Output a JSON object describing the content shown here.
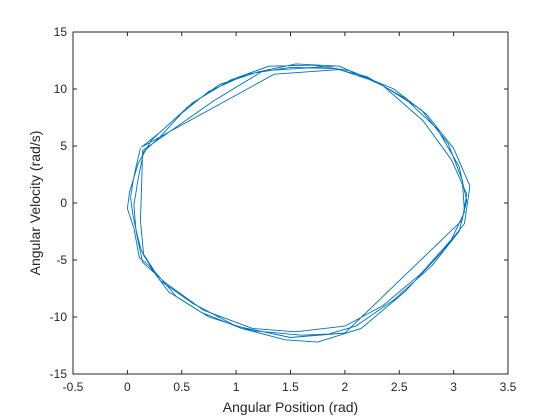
{
  "chart_data": {
    "type": "line",
    "title": "",
    "xlabel": "Angular Position (rad)",
    "ylabel": "Angular Velocity (rad/s)",
    "xlim": [
      -0.5,
      3.5
    ],
    "ylim": [
      -15,
      15
    ],
    "xticks": [
      -0.5,
      0,
      0.5,
      1,
      1.5,
      2,
      2.5,
      3,
      3.5
    ],
    "yticks": [
      -15,
      -10,
      -5,
      0,
      5,
      10,
      15
    ],
    "xtick_labels": [
      "-0.5",
      "0",
      "0.5",
      "1",
      "1.5",
      "2",
      "2.5",
      "3",
      "3.5"
    ],
    "ytick_labels": [
      "-15",
      "-10",
      "-5",
      "0",
      "5",
      "10",
      "15"
    ],
    "grid": false,
    "legend": "none",
    "line_color": "#0072BD",
    "series": [
      {
        "values": [
          [
            0.12,
            4.8
          ],
          [
            0.08,
            3.2
          ],
          [
            0.05,
            1.8
          ],
          [
            0.03,
            0.5
          ],
          [
            0.05,
            -1.0
          ],
          [
            0.09,
            -2.8
          ],
          [
            0.13,
            -4.2
          ],
          [
            0.25,
            -6.0
          ],
          [
            0.45,
            -8.2
          ],
          [
            0.75,
            -10.0
          ],
          [
            1.15,
            -11.2
          ],
          [
            1.6,
            -11.6
          ],
          [
            1.85,
            -11.5
          ],
          [
            2.1,
            -10.8
          ],
          [
            2.45,
            -8.5
          ],
          [
            2.8,
            -5.5
          ],
          [
            3.05,
            -2.5
          ],
          [
            3.12,
            0.2
          ],
          [
            3.05,
            3.2
          ],
          [
            2.85,
            6.5
          ],
          [
            2.55,
            9.2
          ],
          [
            2.2,
            11.1
          ],
          [
            1.9,
            11.8
          ],
          [
            1.5,
            11.9
          ],
          [
            1.1,
            11.3
          ],
          [
            0.75,
            9.8
          ],
          [
            0.45,
            7.5
          ],
          [
            0.22,
            5.5
          ],
          [
            0.1,
            3.5
          ],
          [
            0.02,
            1.0
          ],
          [
            0.0,
            -0.5
          ],
          [
            0.06,
            -2.2
          ],
          [
            0.11,
            -4.8
          ],
          [
            0.2,
            -5.5
          ],
          [
            0.38,
            -7.8
          ],
          [
            0.68,
            -9.6
          ],
          [
            1.05,
            -11.0
          ],
          [
            1.45,
            -12.0
          ],
          [
            1.75,
            -12.2
          ],
          [
            2.15,
            -11.0
          ],
          [
            2.55,
            -7.8
          ],
          [
            2.9,
            -4.2
          ],
          [
            3.1,
            -1.8
          ],
          [
            3.15,
            1.5
          ],
          [
            3.0,
            4.8
          ],
          [
            2.75,
            7.8
          ],
          [
            2.45,
            10.0
          ],
          [
            2.05,
            11.6
          ],
          [
            1.7,
            12.1
          ],
          [
            1.3,
            12.0
          ],
          [
            0.95,
            10.8
          ],
          [
            0.6,
            8.8
          ],
          [
            0.3,
            6.2
          ],
          [
            0.13,
            4.9
          ],
          [
            1.35,
            11.3
          ],
          [
            1.95,
            11.7
          ],
          [
            2.3,
            10.6
          ],
          [
            2.7,
            8.2
          ],
          [
            2.95,
            5.2
          ],
          [
            3.08,
            2.0
          ],
          [
            3.1,
            -0.8
          ],
          [
            2.98,
            -3.2
          ],
          [
            2.7,
            -6.2
          ],
          [
            2.35,
            -9.0
          ],
          [
            2.0,
            -10.8
          ],
          [
            1.55,
            -11.3
          ],
          [
            1.15,
            -11.0
          ],
          [
            0.7,
            -9.4
          ],
          [
            0.35,
            -7.0
          ],
          [
            0.14,
            -5.2
          ],
          [
            0.08,
            -2.5
          ],
          [
            0.06,
            -0.2
          ],
          [
            0.1,
            2.2
          ],
          [
            0.15,
            4.5
          ],
          [
            0.3,
            5.8
          ],
          [
            0.55,
            8.4
          ],
          [
            0.85,
            10.4
          ],
          [
            1.2,
            11.5
          ],
          [
            1.55,
            12.2
          ],
          [
            1.95,
            12.0
          ],
          [
            2.35,
            10.3
          ],
          [
            2.72,
            7.2
          ],
          [
            2.98,
            3.8
          ],
          [
            3.12,
            0.8
          ],
          [
            3.08,
            -1.5
          ],
          [
            2.0,
            -11.4
          ],
          [
            1.5,
            -11.8
          ],
          [
            1.0,
            -10.8
          ],
          [
            0.6,
            -8.8
          ],
          [
            0.3,
            -6.8
          ],
          [
            0.15,
            -4.6
          ],
          [
            0.12,
            -1.5
          ],
          [
            0.13,
            1.2
          ],
          [
            0.14,
            4.6
          ],
          [
            0.8,
            9.0
          ],
          [
            1.25,
            11.6
          ],
          [
            1.9,
            12.0
          ]
        ]
      }
    ]
  }
}
